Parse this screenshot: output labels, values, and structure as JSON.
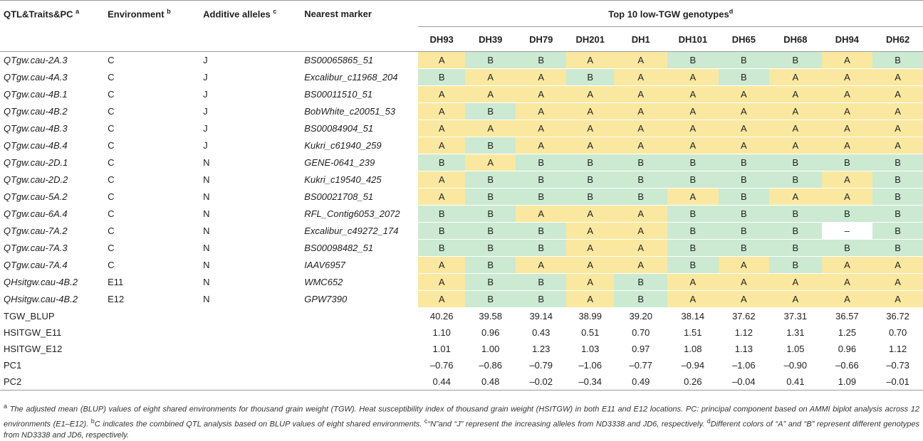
{
  "table": {
    "headers": {
      "qtl": "QTL&Traits&PC",
      "qtl_sup": "a",
      "env": "Environment",
      "env_sup": "b",
      "alleles": "Additive alleles",
      "alleles_sup": "c",
      "marker": "Nearest marker",
      "group": "Top 10 low-TGW genotypes",
      "group_sup": "d"
    },
    "genotypes": [
      "DH93",
      "DH39",
      "DH79",
      "DH201",
      "DH1",
      "DH101",
      "DH65",
      "DH68",
      "DH94",
      "DH62"
    ],
    "qtl_rows": [
      {
        "qtl": "QTgw.cau-2A.3",
        "env": "C",
        "allele": "J",
        "marker": "BS00065865_51",
        "g": [
          "A",
          "B",
          "B",
          "A",
          "A",
          "B",
          "B",
          "B",
          "A",
          "B"
        ]
      },
      {
        "qtl": "QTgw.cau-4A.3",
        "env": "C",
        "allele": "J",
        "marker": "Excalibur_c11968_204",
        "g": [
          "B",
          "A",
          "A",
          "B",
          "A",
          "A",
          "B",
          "A",
          "A",
          "A"
        ]
      },
      {
        "qtl": "QTgw.cau-4B.1",
        "env": "C",
        "allele": "J",
        "marker": "BS00011510_51",
        "g": [
          "A",
          "A",
          "A",
          "A",
          "A",
          "A",
          "A",
          "A",
          "A",
          "A"
        ]
      },
      {
        "qtl": "QTgw.cau-4B.2",
        "env": "C",
        "allele": "J",
        "marker": "BobWhite_c20051_53",
        "g": [
          "A",
          "B",
          "A",
          "A",
          "A",
          "A",
          "A",
          "A",
          "A",
          "A"
        ]
      },
      {
        "qtl": "QTgw.cau-4B.3",
        "env": "C",
        "allele": "J",
        "marker": "BS00084904_51",
        "g": [
          "A",
          "A",
          "A",
          "A",
          "A",
          "A",
          "A",
          "A",
          "A",
          "A"
        ]
      },
      {
        "qtl": "QTgw.cau-4B.4",
        "env": "C",
        "allele": "J",
        "marker": "Kukri_c61940_259",
        "g": [
          "A",
          "B",
          "A",
          "A",
          "A",
          "A",
          "A",
          "A",
          "A",
          "A"
        ]
      },
      {
        "qtl": "QTgw.cau-2D.1",
        "env": "C",
        "allele": "N",
        "marker": "GENE-0641_239",
        "g": [
          "B",
          "A",
          "B",
          "B",
          "B",
          "B",
          "B",
          "B",
          "B",
          "B"
        ]
      },
      {
        "qtl": "QTgw.cau-2D.2",
        "env": "C",
        "allele": "N",
        "marker": "Kukri_c19540_425",
        "g": [
          "A",
          "B",
          "B",
          "B",
          "B",
          "B",
          "B",
          "B",
          "A",
          "B"
        ]
      },
      {
        "qtl": "QTgw.cau-5A.2",
        "env": "C",
        "allele": "N",
        "marker": "BS00021708_51",
        "g": [
          "A",
          "B",
          "B",
          "B",
          "B",
          "A",
          "B",
          "A",
          "A",
          "B"
        ]
      },
      {
        "qtl": "QTgw.cau-6A.4",
        "env": "C",
        "allele": "N",
        "marker": "RFL_Contig6053_2072",
        "g": [
          "B",
          "B",
          "A",
          "A",
          "A",
          "B",
          "B",
          "B",
          "B",
          "B"
        ]
      },
      {
        "qtl": "QTgw.cau-7A.2",
        "env": "C",
        "allele": "N",
        "marker": "Excalibur_c49272_174",
        "g": [
          "B",
          "B",
          "B",
          "A",
          "A",
          "B",
          "B",
          "B",
          "–",
          "B"
        ]
      },
      {
        "qtl": "QTgw.cau-7A.3",
        "env": "C",
        "allele": "N",
        "marker": "BS00098482_51",
        "g": [
          "B",
          "B",
          "B",
          "A",
          "A",
          "B",
          "B",
          "B",
          "B",
          "B"
        ]
      },
      {
        "qtl": "QTgw.cau-7A.4",
        "env": "C",
        "allele": "N",
        "marker": "IAAV6957",
        "g": [
          "A",
          "B",
          "A",
          "A",
          "A",
          "B",
          "A",
          "B",
          "A",
          "A"
        ]
      },
      {
        "qtl": "QHsitgw.cau-4B.2",
        "env": "E11",
        "allele": "N",
        "marker": "WMC652",
        "g": [
          "A",
          "B",
          "B",
          "A",
          "B",
          "A",
          "A",
          "A",
          "A",
          "A"
        ]
      },
      {
        "qtl": "QHsitgw.cau-4B.2",
        "env": "E12",
        "allele": "N",
        "marker": "GPW7390",
        "g": [
          "A",
          "B",
          "B",
          "A",
          "B",
          "A",
          "A",
          "A",
          "A",
          "A"
        ]
      }
    ],
    "value_rows": [
      {
        "label": "TGW_BLUP",
        "values": [
          "40.26",
          "39.58",
          "39.14",
          "38.99",
          "39.20",
          "38.14",
          "37.62",
          "37.31",
          "36.57",
          "36.72"
        ]
      },
      {
        "label": "HSITGW_E11",
        "values": [
          "1.10",
          "0.96",
          "0.43",
          "0.51",
          "0.70",
          "1.51",
          "1.12",
          "1.31",
          "1.25",
          "0.70"
        ]
      },
      {
        "label": "HSITGW_E12",
        "values": [
          "1.01",
          "1.00",
          "1.23",
          "1.03",
          "0.97",
          "1.08",
          "1.13",
          "1.05",
          "0.96",
          "1.12"
        ]
      },
      {
        "label": "PC1",
        "values": [
          "–0.76",
          "–0.86",
          "–0.79",
          "–1.06",
          "–0.77",
          "–0.94",
          "–1.06",
          "–0.90",
          "–0.66",
          "–0.73"
        ]
      },
      {
        "label": "PC2",
        "values": [
          "0.44",
          "0.48",
          "–0.02",
          "–0.34",
          "0.49",
          "0.26",
          "–0.04",
          "0.41",
          "1.09",
          "–0.01"
        ]
      }
    ],
    "colors": {
      "A": "#fae8a0",
      "B": "#cce9d2"
    }
  },
  "footnote": {
    "a_sup": "a",
    "a": " The adjusted mean (BLUP) values of eight shared environments for thousand grain weight (TGW). Heat susceptibility index of thousand grain weight (HSITGW) in both E11 and E12 locations. PC: principal component based on AMMI biplot analysis across 12 environments (E1–E12). ",
    "b_sup": "b",
    "b": "C indicates the combined QTL analysis based on BLUP values of eight shared environments. ",
    "c_sup": "c",
    "c": "“N”and “J” represent the increasing alleles from ND3338 and JD6, respectively. ",
    "d_sup": "d",
    "d": "Different colors of “A” and “B” represent different genotypes from ND3338 and JD6, respectively."
  }
}
